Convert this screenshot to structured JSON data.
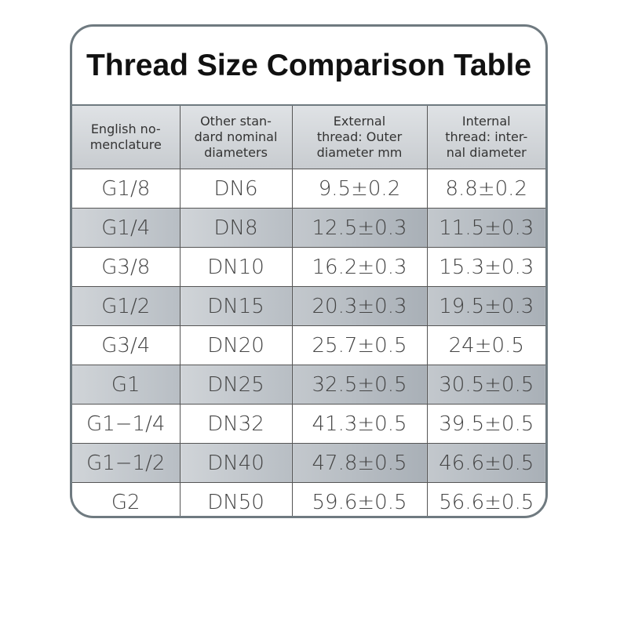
{
  "title": "Thread Size Comparison Table",
  "table": {
    "header": [
      [
        "English no-",
        "menclature"
      ],
      [
        "Other stan-",
        "dard nominal",
        "diameters"
      ],
      [
        "External",
        "thread: Outer",
        "diameter mm"
      ],
      [
        "Internal",
        "thread: inter-",
        "nal diameter"
      ]
    ],
    "rows": [
      [
        "G1/8",
        "DN6",
        "9.5±0.2",
        "8.8±0.2"
      ],
      [
        "G1/4",
        "DN8",
        "12.5±0.3",
        "11.5±0.3"
      ],
      [
        "G3/8",
        "DN10",
        "16.2±0.3",
        "15.3±0.3"
      ],
      [
        "G1/2",
        "DN15",
        "20.3±0.3",
        "19.5±0.3"
      ],
      [
        "G3/4",
        "DN20",
        "25.7±0.5",
        "24±0.5"
      ],
      [
        "G1",
        "DN25",
        "32.5±0.5",
        "30.5±0.5"
      ],
      [
        "G1−1/4",
        "DN32",
        "41.3±0.5",
        "39.5±0.5"
      ],
      [
        "G1−1/2",
        "DN40",
        "47.8±0.5",
        "46.6±0.5"
      ],
      [
        "G2",
        "DN50",
        "59.6±0.5",
        "56.6±0.5"
      ]
    ]
  }
}
